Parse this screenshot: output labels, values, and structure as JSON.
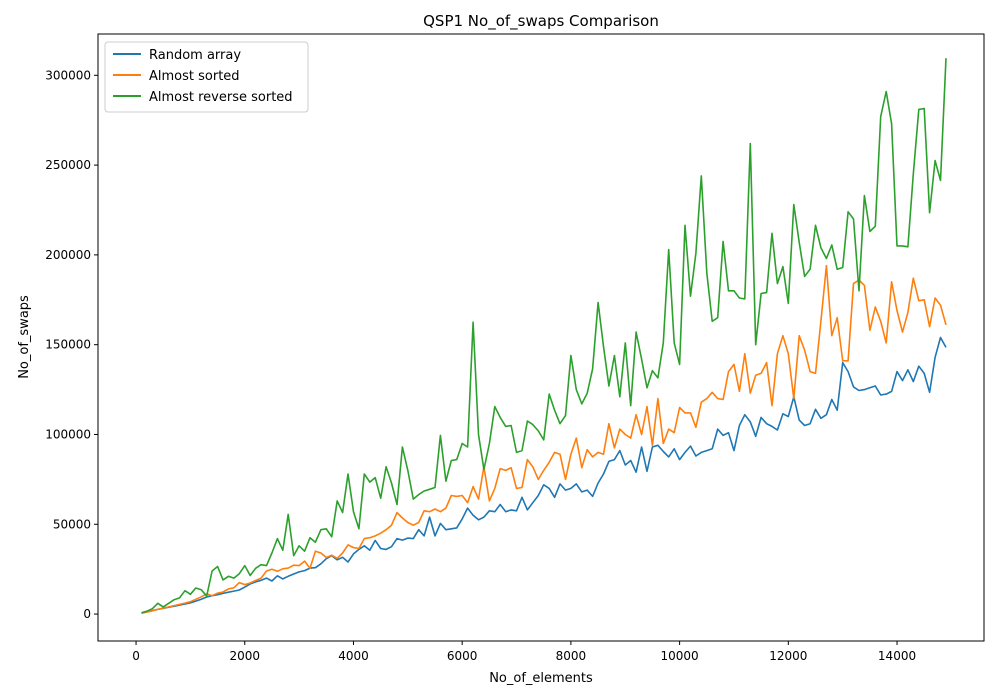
{
  "chart_data": {
    "type": "line",
    "title": "QSP1 No_of_swaps Comparison",
    "xlabel": "No_of_elements",
    "ylabel": "No_of_swaps",
    "xlim": [
      -700,
      15600
    ],
    "ylim": [
      -15000,
      323000
    ],
    "xticks": [
      0,
      2000,
      4000,
      6000,
      8000,
      10000,
      12000,
      14000
    ],
    "yticks": [
      0,
      50000,
      100000,
      150000,
      200000,
      250000,
      300000
    ],
    "grid": false,
    "legend_position": "top-left",
    "x": [
      100,
      200,
      300,
      400,
      500,
      600,
      700,
      800,
      900,
      1000,
      1100,
      1200,
      1300,
      1400,
      1500,
      1600,
      1700,
      1800,
      1900,
      2000,
      2100,
      2200,
      2300,
      2400,
      2500,
      2600,
      2700,
      2800,
      2900,
      3000,
      3100,
      3200,
      3300,
      3400,
      3500,
      3600,
      3700,
      3800,
      3900,
      4000,
      4100,
      4200,
      4300,
      4400,
      4500,
      4600,
      4700,
      4800,
      4900,
      5000,
      5100,
      5200,
      5300,
      5400,
      5500,
      5600,
      5700,
      5800,
      5900,
      6000,
      6100,
      6200,
      6300,
      6400,
      6500,
      6600,
      6700,
      6800,
      6900,
      7000,
      7100,
      7200,
      7300,
      7400,
      7500,
      7600,
      7700,
      7800,
      7900,
      8000,
      8100,
      8200,
      8300,
      8400,
      8500,
      8600,
      8700,
      8800,
      8900,
      9000,
      9100,
      9200,
      9300,
      9400,
      9500,
      9600,
      9700,
      9800,
      9900,
      10000,
      10100,
      10200,
      10300,
      10400,
      10500,
      10600,
      10700,
      10800,
      10900,
      11000,
      11100,
      11200,
      11300,
      11400,
      11500,
      11600,
      11700,
      11800,
      11900,
      12000,
      12100,
      12200,
      12300,
      12400,
      12500,
      12600,
      12700,
      12800,
      12900,
      13000,
      13100,
      13200,
      13300,
      13400,
      13500,
      13600,
      13700,
      13800,
      13900,
      14000,
      14100,
      14200,
      14300,
      14400,
      14500,
      14600,
      14700,
      14800,
      14900
    ],
    "series": [
      {
        "name": "Random array",
        "color": "#1f77b4",
        "values": [
          600,
          1200,
          2000,
          2600,
          3200,
          3800,
          4400,
          5000,
          5600,
          6200,
          7200,
          8300,
          9500,
          10200,
          10800,
          11500,
          12200,
          12800,
          13400,
          15000,
          16800,
          17900,
          18800,
          20000,
          18400,
          21300,
          19600,
          21000,
          22300,
          23500,
          24200,
          25600,
          25800,
          28000,
          30800,
          32500,
          30200,
          31600,
          29000,
          33500,
          36000,
          38000,
          35500,
          41000,
          36500,
          36000,
          37500,
          42000,
          41200,
          42300,
          42000,
          47000,
          43500,
          54000,
          43500,
          50500,
          47000,
          47500,
          48000,
          53000,
          59000,
          55000,
          52500,
          54000,
          57500,
          57000,
          61000,
          57000,
          58000,
          57500,
          65000,
          58000,
          62000,
          66000,
          72000,
          70000,
          65000,
          72500,
          69000,
          70000,
          72500,
          68000,
          69000,
          65500,
          73000,
          78000,
          85000,
          86000,
          91000,
          83000,
          85500,
          79000,
          93000,
          79500,
          93000,
          94000,
          90500,
          87500,
          92000,
          86000,
          90000,
          93500,
          88000,
          90000,
          91000,
          92000,
          103000,
          99500,
          101000,
          91000,
          105000,
          111000,
          107000,
          99000,
          109500,
          106000,
          104500,
          102500,
          111500,
          110000,
          121000,
          108000,
          105000,
          106000,
          114000,
          109000,
          111000,
          119500,
          113500,
          140000,
          135000,
          126500,
          124500,
          125000,
          126000,
          127000,
          122000,
          122500,
          124000,
          135000,
          130000,
          136000,
          129500,
          138000,
          134000,
          123500,
          143000,
          154000,
          148500
        ]
      },
      {
        "name": "Almost sorted",
        "color": "#ff7f0e",
        "values": [
          500,
          1100,
          1800,
          2600,
          3300,
          4000,
          4700,
          5400,
          6100,
          6900,
          8200,
          9600,
          11200,
          10200,
          11700,
          12300,
          14000,
          14600,
          17500,
          16400,
          17300,
          18700,
          20000,
          24000,
          25000,
          23800,
          25200,
          25600,
          27200,
          27000,
          29500,
          25500,
          35000,
          34000,
          31500,
          32800,
          31000,
          34000,
          38500,
          37000,
          36500,
          42000,
          42500,
          43500,
          45000,
          47000,
          49500,
          56500,
          53500,
          51000,
          49500,
          51000,
          57500,
          57000,
          58500,
          57000,
          59000,
          66000,
          65500,
          66000,
          62000,
          71000,
          64000,
          82000,
          63000,
          70000,
          81000,
          80000,
          81500,
          70000,
          70500,
          86000,
          82000,
          75000,
          80000,
          84500,
          90000,
          89000,
          75000,
          89000,
          98000,
          81500,
          91500,
          87500,
          90000,
          89000,
          106000,
          92500,
          103000,
          100000,
          98000,
          111000,
          100000,
          115500,
          94000,
          120000,
          95000,
          103000,
          101000,
          115000,
          112000,
          112000,
          104000,
          118000,
          120000,
          123500,
          120000,
          119500,
          135000,
          139000,
          124000,
          145000,
          123000,
          133000,
          134000,
          140000,
          116000,
          145000,
          155000,
          145000,
          120000,
          155000,
          147000,
          135000,
          134000,
          163000,
          194000,
          155000,
          165000,
          141000,
          141000,
          184000,
          186000,
          183000,
          158000,
          171000,
          163000,
          151000,
          185000,
          169000,
          157000,
          168000,
          187000,
          174500,
          175000,
          160000,
          176000,
          172000,
          161000
        ]
      },
      {
        "name": "Almost reverse sorted",
        "color": "#2ca02c",
        "values": [
          700,
          1600,
          3000,
          6000,
          4000,
          6000,
          8000,
          9000,
          13000,
          11000,
          14500,
          13500,
          10000,
          24000,
          26500,
          19000,
          21000,
          20000,
          22500,
          27000,
          21500,
          25500,
          27500,
          27000,
          34000,
          42000,
          35500,
          55500,
          32500,
          38000,
          35000,
          42500,
          40000,
          47000,
          47500,
          43000,
          63000,
          56500,
          78000,
          57000,
          47500,
          78000,
          73500,
          76000,
          64500,
          82000,
          73000,
          61000,
          93000,
          80000,
          64000,
          66500,
          68500,
          69500,
          70500,
          99500,
          74000,
          85500,
          86000,
          95000,
          93000,
          162500,
          100000,
          80500,
          95000,
          115500,
          109500,
          104500,
          105000,
          90000,
          91000,
          107500,
          105500,
          102000,
          97000,
          122500,
          113500,
          106000,
          110500,
          144000,
          125000,
          117000,
          123000,
          136500,
          173500,
          149000,
          127000,
          144000,
          121000,
          151000,
          116000,
          157000,
          142000,
          126000,
          135500,
          131500,
          151000,
          203000,
          151000,
          139000,
          216500,
          177000,
          201000,
          244000,
          190000,
          163000,
          165000,
          207500,
          180000,
          180000,
          176000,
          175500,
          262000,
          150000,
          178500,
          179000,
          212000,
          184000,
          193500,
          173000,
          228000,
          207000,
          188000,
          192000,
          216500,
          204000,
          198000,
          205500,
          192000,
          193000,
          224000,
          220000,
          180000,
          233000,
          213000,
          216000,
          277000,
          291000,
          273000,
          205000,
          205000,
          204500,
          245000,
          281000,
          281500,
          223500,
          252500,
          241500,
          309500
        ]
      }
    ]
  }
}
